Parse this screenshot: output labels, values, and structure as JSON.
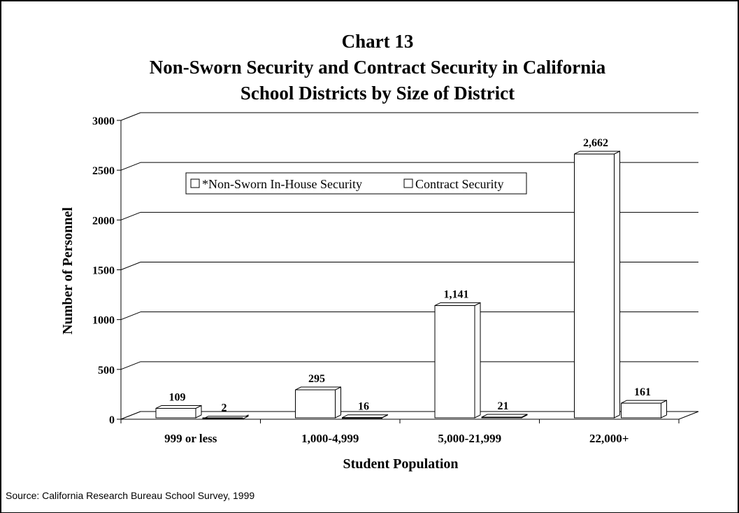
{
  "chart_data": {
    "type": "bar",
    "title_lines": [
      "Chart 13",
      "Non-Sworn Security and Contract Security in California",
      "School Districts by Size of District"
    ],
    "xlabel": "Student Population",
    "ylabel": "Number of Personnel",
    "categories": [
      "999 or less",
      "1,000-4,999",
      "5,000-21,999",
      "22,000+"
    ],
    "series": [
      {
        "name": "*Non-Sworn In-House Security",
        "values": [
          109,
          295,
          1141,
          2662
        ],
        "labels": [
          "109",
          "295",
          "1,141",
          "2,662"
        ]
      },
      {
        "name": "Contract Security",
        "values": [
          2,
          16,
          21,
          161
        ],
        "labels": [
          "2",
          "16",
          "21",
          "161"
        ]
      }
    ],
    "ylim": [
      0,
      3000
    ],
    "yticks": [
      "0",
      "500",
      "1000",
      "1500",
      "2000",
      "2500",
      "3000"
    ],
    "grid": true,
    "legend_position": "top-left"
  },
  "source": "Source: California Research Bureau School Survey, 1999"
}
